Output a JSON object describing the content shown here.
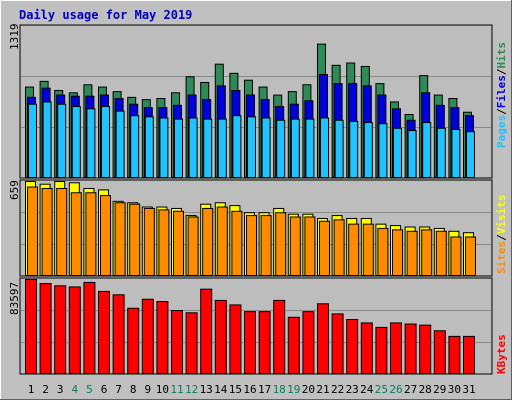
{
  "chart_data": [
    {
      "type": "bar",
      "title": "Daily usage for May 2019",
      "panel": "top",
      "ymax_label": "1319",
      "ylim": [
        0,
        1319
      ],
      "categories": [
        "1",
        "2",
        "3",
        "4",
        "5",
        "6",
        "7",
        "8",
        "9",
        "10",
        "11",
        "12",
        "13",
        "14",
        "15",
        "16",
        "17",
        "18",
        "19",
        "20",
        "21",
        "22",
        "23",
        "24",
        "25",
        "26",
        "27",
        "28",
        "29",
        "30",
        "31"
      ],
      "series": [
        {
          "name": "Hits",
          "color": "#2e8b57",
          "values": [
            790,
            840,
            760,
            740,
            810,
            790,
            750,
            700,
            680,
            690,
            740,
            880,
            830,
            990,
            910,
            850,
            790,
            720,
            750,
            810,
            1165,
            980,
            1000,
            970,
            820,
            660,
            550,
            890,
            720,
            690,
            570
          ]
        },
        {
          "name": "Files",
          "color": "#0000dd",
          "values": [
            700,
            780,
            720,
            710,
            710,
            720,
            690,
            640,
            610,
            610,
            630,
            720,
            680,
            800,
            760,
            720,
            680,
            620,
            640,
            670,
            900,
            820,
            820,
            800,
            720,
            600,
            500,
            740,
            630,
            610,
            540
          ]
        },
        {
          "name": "Pages",
          "color": "#1ec3ff",
          "values": [
            640,
            660,
            640,
            620,
            600,
            620,
            580,
            540,
            530,
            520,
            510,
            520,
            510,
            510,
            540,
            530,
            520,
            500,
            510,
            510,
            520,
            500,
            490,
            480,
            470,
            430,
            410,
            480,
            430,
            420,
            400
          ]
        }
      ],
      "legend": [
        "Pages",
        "/",
        "Files",
        "/",
        "Hits"
      ]
    },
    {
      "type": "bar",
      "panel": "middle",
      "ymax_label": "659",
      "ylim": [
        0,
        659
      ],
      "series": [
        {
          "name": "Visits",
          "color": "#ffff00",
          "values": [
            659,
            640,
            659,
            650,
            610,
            600,
            520,
            510,
            480,
            480,
            470,
            420,
            500,
            510,
            490,
            440,
            440,
            470,
            430,
            430,
            400,
            420,
            400,
            400,
            360,
            350,
            340,
            340,
            330,
            310,
            300
          ]
        },
        {
          "name": "Sites",
          "color": "#ff8c00",
          "values": [
            620,
            610,
            610,
            580,
            580,
            560,
            510,
            500,
            470,
            460,
            450,
            410,
            470,
            480,
            450,
            420,
            420,
            440,
            410,
            410,
            380,
            390,
            360,
            360,
            330,
            320,
            310,
            320,
            310,
            270,
            270
          ]
        }
      ],
      "legend": [
        "Sites",
        "/",
        "Visits"
      ]
    },
    {
      "type": "bar",
      "panel": "bottom",
      "ymax_label": "83597",
      "ylim": [
        0,
        83597
      ],
      "series": [
        {
          "name": "KBytes",
          "color": "#ff0000",
          "values": [
            83597,
            80000,
            78000,
            77000,
            81000,
            73000,
            70000,
            58000,
            66000,
            64000,
            56000,
            54000,
            75000,
            65000,
            61000,
            55000,
            55000,
            65000,
            50000,
            55000,
            62000,
            53000,
            48000,
            45000,
            41000,
            45000,
            44000,
            43000,
            38000,
            33000,
            33000
          ]
        }
      ],
      "legend": [
        "KBytes"
      ]
    }
  ],
  "x_labels": [
    {
      "text": "1",
      "weekend": false
    },
    {
      "text": "2",
      "weekend": false
    },
    {
      "text": "3",
      "weekend": false
    },
    {
      "text": "4",
      "weekend": true
    },
    {
      "text": "5",
      "weekend": true
    },
    {
      "text": "6",
      "weekend": false
    },
    {
      "text": "7",
      "weekend": false
    },
    {
      "text": "8",
      "weekend": false
    },
    {
      "text": "9",
      "weekend": false
    },
    {
      "text": "10",
      "weekend": false
    },
    {
      "text": "11",
      "weekend": true
    },
    {
      "text": "12",
      "weekend": true
    },
    {
      "text": "13",
      "weekend": false
    },
    {
      "text": "14",
      "weekend": false
    },
    {
      "text": "15",
      "weekend": false
    },
    {
      "text": "16",
      "weekend": false
    },
    {
      "text": "17",
      "weekend": false
    },
    {
      "text": "18",
      "weekend": true
    },
    {
      "text": "19",
      "weekend": true
    },
    {
      "text": "20",
      "weekend": false
    },
    {
      "text": "21",
      "weekend": false
    },
    {
      "text": "22",
      "weekend": false
    },
    {
      "text": "23",
      "weekend": false
    },
    {
      "text": "24",
      "weekend": false
    },
    {
      "text": "25",
      "weekend": true
    },
    {
      "text": "26",
      "weekend": true
    },
    {
      "text": "27",
      "weekend": false
    },
    {
      "text": "28",
      "weekend": false
    },
    {
      "text": "29",
      "weekend": false
    },
    {
      "text": "30",
      "weekend": false
    },
    {
      "text": "31",
      "weekend": false
    }
  ],
  "colors": {
    "title": "#0000c0",
    "weekday_label": "#000000",
    "weekend_label": "#00805a",
    "panel_bg": "#c0c0c0",
    "outer_bg": "#c0c0c0"
  }
}
